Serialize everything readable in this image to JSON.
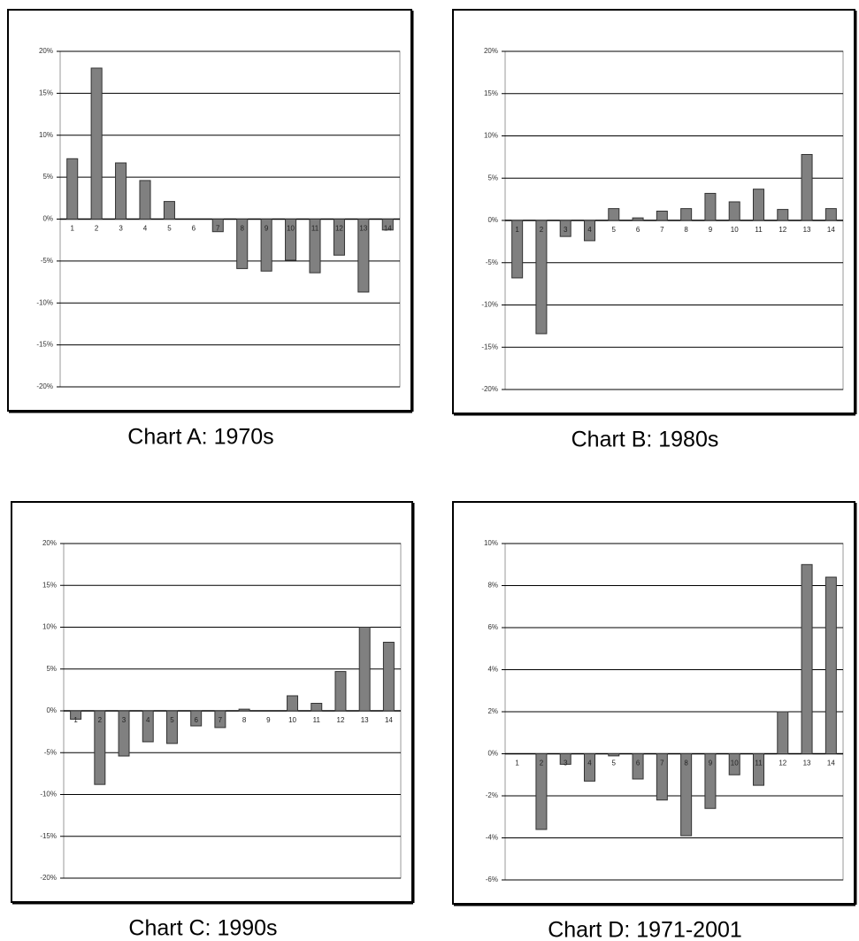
{
  "chart_data": [
    {
      "type": "bar",
      "title": "Chart A: 1970s",
      "categories": [
        "1",
        "2",
        "3",
        "4",
        "5",
        "6",
        "7",
        "8",
        "9",
        "10",
        "11",
        "12",
        "13",
        "14"
      ],
      "values": [
        7.2,
        18,
        6.7,
        4.6,
        2.1,
        0,
        -1.5,
        -5.9,
        -6.2,
        -4.9,
        -6.4,
        -4.3,
        -8.7,
        -1.3
      ],
      "color": "#808080",
      "ylim": [
        -20,
        20
      ],
      "yticks": [
        {
          "value": -20,
          "label": "-20%"
        },
        {
          "value": -15,
          "label": "-15%"
        },
        {
          "value": -10,
          "label": "-10%"
        },
        {
          "value": -5,
          "label": "-5%"
        },
        {
          "value": 0,
          "label": "0%"
        },
        {
          "value": 5,
          "label": "5%"
        },
        {
          "value": 10,
          "label": "10%"
        },
        {
          "value": 15,
          "label": "15%"
        },
        {
          "value": 20,
          "label": "20%"
        }
      ],
      "grid": true
    },
    {
      "type": "bar",
      "title": "Chart B: 1980s",
      "categories": [
        "1",
        "2",
        "3",
        "4",
        "5",
        "6",
        "7",
        "8",
        "9",
        "10",
        "11",
        "12",
        "13",
        "14"
      ],
      "values": [
        -6.8,
        -13.4,
        -1.9,
        -2.4,
        1.4,
        0.3,
        1.1,
        1.4,
        3.2,
        2.2,
        3.7,
        1.3,
        7.8,
        1.4
      ],
      "color": "#808080",
      "ylim": [
        -20,
        20
      ],
      "yticks": [
        {
          "value": -20,
          "label": "-20%"
        },
        {
          "value": -15,
          "label": "-15%"
        },
        {
          "value": -10,
          "label": "-10%"
        },
        {
          "value": -5,
          "label": "-5%"
        },
        {
          "value": 0,
          "label": "0%"
        },
        {
          "value": 5,
          "label": "5%"
        },
        {
          "value": 10,
          "label": "10%"
        },
        {
          "value": 15,
          "label": "15%"
        },
        {
          "value": 20,
          "label": "20%"
        }
      ],
      "grid": true
    },
    {
      "type": "bar",
      "title": "Chart C: 1990s",
      "categories": [
        "1",
        "2",
        "3",
        "4",
        "5",
        "6",
        "7",
        "8",
        "9",
        "10",
        "11",
        "12",
        "13",
        "14"
      ],
      "values": [
        -1,
        -8.8,
        -5.4,
        -3.7,
        -3.9,
        -1.8,
        -2,
        0.2,
        0,
        1.8,
        0.9,
        4.7,
        10,
        8.2
      ],
      "color": "#808080",
      "ylim": [
        -20,
        20
      ],
      "yticks": [
        {
          "value": -20,
          "label": "-20%"
        },
        {
          "value": -15,
          "label": "-15%"
        },
        {
          "value": -10,
          "label": "-10%"
        },
        {
          "value": -5,
          "label": "-5%"
        },
        {
          "value": 0,
          "label": "0%"
        },
        {
          "value": 5,
          "label": "5%"
        },
        {
          "value": 10,
          "label": "10%"
        },
        {
          "value": 15,
          "label": "15%"
        },
        {
          "value": 20,
          "label": "20%"
        }
      ],
      "grid": true
    },
    {
      "type": "bar",
      "title": "Chart D: 1971-2001",
      "categories": [
        "1",
        "2",
        "3",
        "4",
        "5",
        "6",
        "7",
        "8",
        "9",
        "10",
        "11",
        "12",
        "13",
        "14"
      ],
      "values": [
        0,
        -3.6,
        -0.5,
        -1.3,
        -0.1,
        -1.2,
        -2.2,
        -3.9,
        -2.6,
        -1,
        -1.5,
        2,
        9,
        8.4
      ],
      "color": "#808080",
      "ylim": [
        -6,
        10
      ],
      "yticks": [
        {
          "value": -6,
          "label": "-6%"
        },
        {
          "value": -4,
          "label": "-4%"
        },
        {
          "value": -2,
          "label": "-2%"
        },
        {
          "value": 0,
          "label": "0%"
        },
        {
          "value": 2,
          "label": "2%"
        },
        {
          "value": 4,
          "label": "4%"
        },
        {
          "value": 6,
          "label": "6%"
        },
        {
          "value": 8,
          "label": "8%"
        },
        {
          "value": 10,
          "label": "10%"
        }
      ],
      "grid": true
    }
  ]
}
